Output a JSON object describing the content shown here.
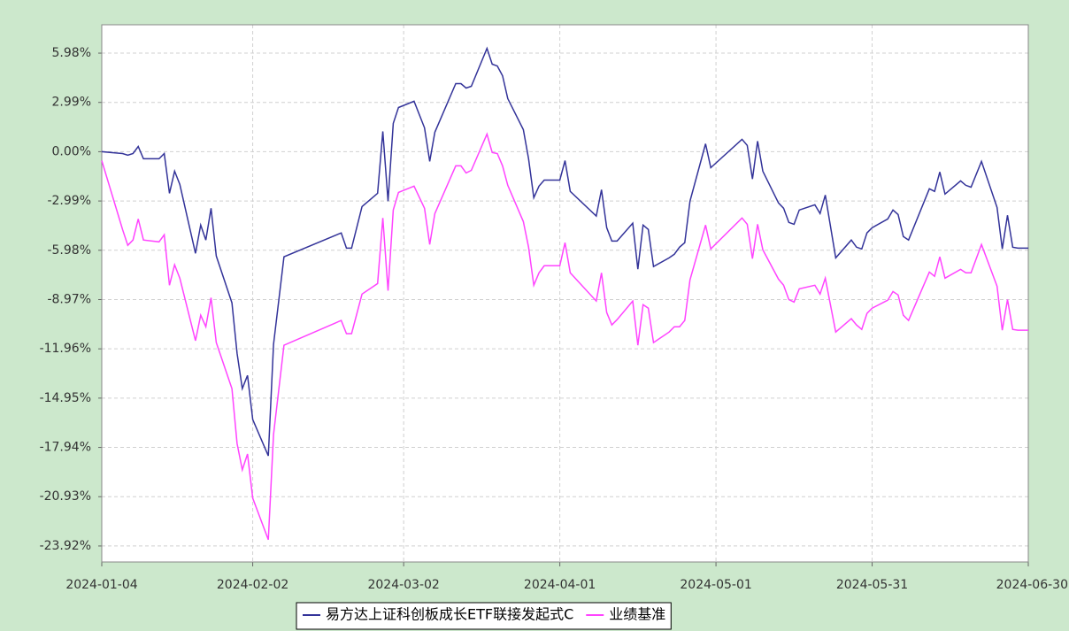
{
  "chart_data": {
    "type": "line",
    "x": [
      "2024-01-04",
      "2024-01-08",
      "2024-01-09",
      "2024-01-10",
      "2024-01-11",
      "2024-01-12",
      "2024-01-15",
      "2024-01-16",
      "2024-01-17",
      "2024-01-18",
      "2024-01-19",
      "2024-01-22",
      "2024-01-23",
      "2024-01-24",
      "2024-01-25",
      "2024-01-26",
      "2024-01-29",
      "2024-01-30",
      "2024-01-31",
      "2024-02-01",
      "2024-02-02",
      "2024-02-05",
      "2024-02-06",
      "2024-02-08",
      "2024-02-19",
      "2024-02-20",
      "2024-02-21",
      "2024-02-23",
      "2024-02-26",
      "2024-02-27",
      "2024-02-28",
      "2024-02-29",
      "2024-03-01",
      "2024-03-04",
      "2024-03-06",
      "2024-03-07",
      "2024-03-08",
      "2024-03-12",
      "2024-03-13",
      "2024-03-14",
      "2024-03-15",
      "2024-03-18",
      "2024-03-19",
      "2024-03-20",
      "2024-03-21",
      "2024-03-22",
      "2024-03-25",
      "2024-03-26",
      "2024-03-27",
      "2024-03-28",
      "2024-03-29",
      "2024-04-01",
      "2024-04-02",
      "2024-04-03",
      "2024-04-08",
      "2024-04-09",
      "2024-04-10",
      "2024-04-11",
      "2024-04-12",
      "2024-04-15",
      "2024-04-16",
      "2024-04-17",
      "2024-04-18",
      "2024-04-19",
      "2024-04-22",
      "2024-04-23",
      "2024-04-24",
      "2024-04-25",
      "2024-04-26",
      "2024-04-29",
      "2024-04-30",
      "2024-05-06",
      "2024-05-07",
      "2024-05-08",
      "2024-05-09",
      "2024-05-10",
      "2024-05-13",
      "2024-05-14",
      "2024-05-15",
      "2024-05-16",
      "2024-05-17",
      "2024-05-20",
      "2024-05-21",
      "2024-05-22",
      "2024-05-24",
      "2024-05-27",
      "2024-05-28",
      "2024-05-29",
      "2024-05-30",
      "2024-05-31",
      "2024-06-03",
      "2024-06-04",
      "2024-06-05",
      "2024-06-06",
      "2024-06-07",
      "2024-06-11",
      "2024-06-12",
      "2024-06-13",
      "2024-06-14",
      "2024-06-17",
      "2024-06-18",
      "2024-06-19",
      "2024-06-21",
      "2024-06-24",
      "2024-06-25",
      "2024-06-26",
      "2024-06-27",
      "2024-06-28",
      "2024-06-30"
    ],
    "series": [
      {
        "name": "易方达上证科创板成长ETF联接发起式C",
        "color": "#333399",
        "values": [
          0,
          -0.11,
          -0.21,
          -0.11,
          0.32,
          -0.43,
          -0.43,
          -0.11,
          -2.52,
          -1.18,
          -1.98,
          -6.17,
          -4.45,
          -5.36,
          -3.43,
          -6.33,
          -9.17,
          -12.23,
          -14.37,
          -13.57,
          -16.25,
          -18.45,
          -11.69,
          -6.38,
          -4.93,
          -5.85,
          -5.85,
          -3.33,
          -2.52,
          1.23,
          -3.0,
          1.72,
          2.68,
          3.06,
          1.45,
          -0.59,
          1.18,
          4.13,
          4.13,
          3.86,
          3.97,
          6.27,
          5.31,
          5.2,
          4.61,
          3.22,
          1.34,
          -0.43,
          -2.79,
          -2.09,
          -1.72,
          -1.72,
          -0.54,
          -2.41,
          -3.91,
          -2.31,
          -4.61,
          -5.42,
          -5.42,
          -4.34,
          -7.13,
          -4.45,
          -4.72,
          -6.97,
          -6.44,
          -6.22,
          -5.79,
          -5.52,
          -3.0,
          0.48,
          -0.97,
          0.75,
          0.38,
          -1.66,
          0.64,
          -1.18,
          -3.11,
          -3.43,
          -4.29,
          -4.4,
          -3.54,
          -3.22,
          -3.75,
          -2.63,
          -6.44,
          -5.36,
          -5.79,
          -5.9,
          -4.93,
          -4.61,
          -4.08,
          -3.54,
          -3.81,
          -5.15,
          -5.36,
          -2.25,
          -2.41,
          -1.23,
          -2.57,
          -1.77,
          -2.04,
          -2.15,
          -0.59,
          -3.38,
          -5.9,
          -3.86,
          -5.79,
          -5.85,
          -5.85
        ]
      },
      {
        "name": "业绩基准",
        "color": "#ff44ff",
        "values": [
          -0.54,
          -4.72,
          -5.68,
          -5.36,
          -4.08,
          -5.36,
          -5.47,
          -5.04,
          -8.1,
          -6.86,
          -7.67,
          -11.47,
          -9.92,
          -10.62,
          -8.86,
          -11.58,
          -14.37,
          -17.7,
          -19.3,
          -18.34,
          -21.02,
          -23.54,
          -17.16,
          -11.74,
          -10.24,
          -11.04,
          -11.04,
          -8.64,
          -8.0,
          -4.02,
          -8.43,
          -3.54,
          -2.47,
          -2.09,
          -3.43,
          -5.63,
          -3.75,
          -0.86,
          -0.86,
          -1.29,
          -1.13,
          1.07,
          -0.05,
          -0.11,
          -0.86,
          -2.04,
          -4.24,
          -5.79,
          -8.1,
          -7.35,
          -6.92,
          -6.92,
          -5.52,
          -7.35,
          -9.06,
          -7.35,
          -9.76,
          -10.51,
          -10.19,
          -9.06,
          -11.74,
          -9.28,
          -9.49,
          -11.58,
          -10.94,
          -10.62,
          -10.62,
          -10.24,
          -7.78,
          -4.45,
          -5.9,
          -4.02,
          -4.4,
          -6.49,
          -4.4,
          -5.95,
          -7.73,
          -8.1,
          -8.97,
          -9.12,
          -8.32,
          -8.1,
          -8.64,
          -7.67,
          -10.94,
          -10.13,
          -10.51,
          -10.78,
          -9.81,
          -9.49,
          -9.01,
          -8.48,
          -8.69,
          -9.92,
          -10.24,
          -7.3,
          -7.56,
          -6.38,
          -7.67,
          -7.14,
          -7.35,
          -7.35,
          -5.63,
          -8.16,
          -10.83,
          -8.97,
          -10.78,
          -10.83,
          -10.83
        ]
      }
    ],
    "xlim": [
      "2024-01-04",
      "2024-06-30"
    ],
    "xticks": [
      "2024-01-04",
      "2024-02-02",
      "2024-03-02",
      "2024-04-01",
      "2024-05-01",
      "2024-05-31",
      "2024-06-30"
    ],
    "ylim": [
      -24.89,
      7.7
    ],
    "yticks": [
      {
        "value": 5.98,
        "label": "5.98%"
      },
      {
        "value": 2.99,
        "label": "2.99%"
      },
      {
        "value": 0,
        "label": "0.00%"
      },
      {
        "value": -2.99,
        "label": "-2.99%"
      },
      {
        "value": -5.98,
        "label": "-5.98%"
      },
      {
        "value": -8.97,
        "label": "-8.97%"
      },
      {
        "value": -11.96,
        "label": "-11.96%"
      },
      {
        "value": -14.95,
        "label": "-14.95%"
      },
      {
        "value": -17.94,
        "label": "-17.94%"
      },
      {
        "value": -20.93,
        "label": "-20.93%"
      },
      {
        "value": -23.92,
        "label": "-23.92%"
      }
    ],
    "grid": true,
    "legend": "bottom"
  }
}
